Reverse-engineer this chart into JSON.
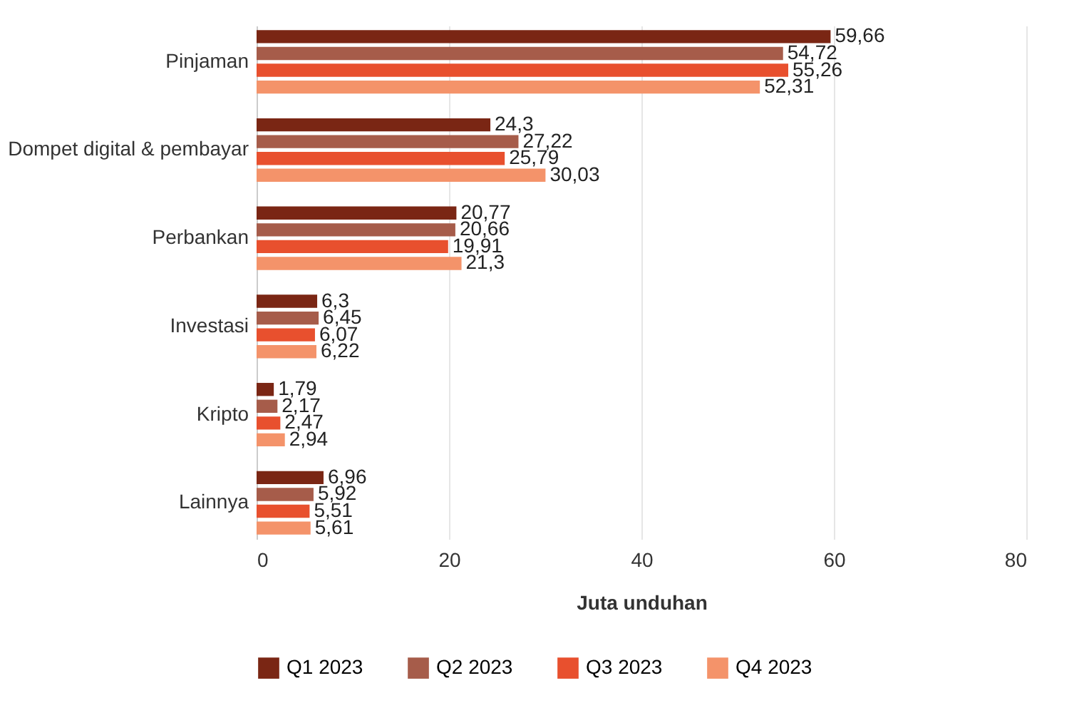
{
  "chart_data": {
    "type": "bar",
    "orientation": "horizontal",
    "xlabel": "Juta unduhan",
    "categories": [
      "Pinjaman",
      "Dompet digital & pembayar",
      "Perbankan",
      "Investasi",
      "Kripto",
      "Lainnya"
    ],
    "series": [
      {
        "name": "Q1 2023",
        "color": "#7a2614",
        "values": [
          59.66,
          24.3,
          20.77,
          6.3,
          1.79,
          6.96
        ],
        "value_labels": [
          "59,66",
          "24,3",
          "20,77",
          "6,3",
          "1,79",
          "6,96"
        ]
      },
      {
        "name": "Q2 2023",
        "color": "#a65c4a",
        "values": [
          54.72,
          27.22,
          20.66,
          6.45,
          2.17,
          5.92
        ],
        "value_labels": [
          "54,72",
          "27,22",
          "20,66",
          "6,45",
          "2,17",
          "5,92"
        ]
      },
      {
        "name": "Q3 2023",
        "color": "#e8502e",
        "values": [
          55.26,
          25.79,
          19.91,
          6.07,
          2.47,
          5.51
        ],
        "value_labels": [
          "55,26",
          "25,79",
          "19,91",
          "6,07",
          "2,47",
          "5,51"
        ]
      },
      {
        "name": "Q4 2023",
        "color": "#f4936a",
        "values": [
          52.31,
          30.03,
          21.3,
          6.22,
          2.94,
          5.61
        ],
        "value_labels": [
          "52,31",
          "30,03",
          "21,3",
          "6,22",
          "2,94",
          "5,61"
        ]
      }
    ],
    "xlim": [
      0,
      80
    ],
    "xticks": [
      0,
      20,
      40,
      60,
      80
    ],
    "grid": "x",
    "legend": "bottom"
  }
}
